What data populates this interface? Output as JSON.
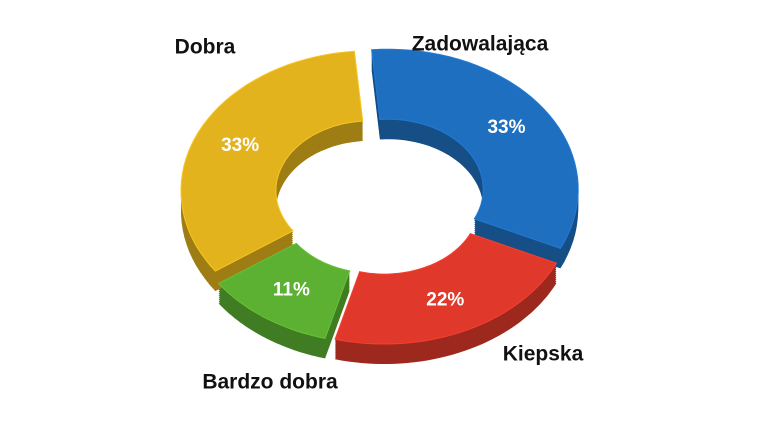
{
  "chart_data": {
    "type": "donut",
    "categories": [
      "Zadowalająca",
      "Kiepska",
      "Bardzo dobra",
      "Dobra"
    ],
    "values": [
      33,
      22,
      11,
      33
    ],
    "value_labels": [
      "33%",
      "22%",
      "11%",
      "33%"
    ],
    "colors": [
      "#1f6fc0",
      "#e0392b",
      "#5cb132",
      "#e2b31c"
    ]
  }
}
